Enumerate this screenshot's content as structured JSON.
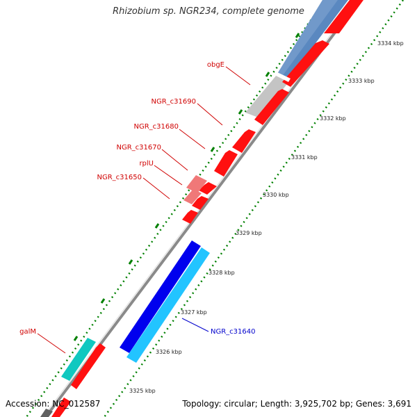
{
  "title": "Rhizobium sp. NGR234, complete genome",
  "footer": {
    "accession": "Accession: NC_012587",
    "topology": "Topology: circular; Length: 3,925,702 bp; Genes: 3,691"
  },
  "colors": {
    "forward_gene": "#ff0000",
    "forward_gene_light": "#f08080",
    "highlight_blue": "#0000ee",
    "highlight_cyan": "#00c0ff",
    "teal": "#20c8c8",
    "steel": "#5a88c0",
    "gray_feature": "#c8c8c8",
    "backbone": "#808080",
    "tick_green": "#008000",
    "label_red": "#d00000",
    "label_blue": "#0000cc"
  },
  "gene_labels": [
    {
      "name": "obgE"
    },
    {
      "name": "NGR_c31690"
    },
    {
      "name": "NGR_c31680"
    },
    {
      "name": "NGR_c31670"
    },
    {
      "name": "rplU"
    },
    {
      "name": "NGR_c31650"
    },
    {
      "name": "galM"
    },
    {
      "name": "NGR_c31640"
    }
  ],
  "tick_labels": [
    "3334 kbp",
    "3333 kbp",
    "3332 kbp",
    "3331 kbp",
    "3330 kbp",
    "3329 kbp",
    "3328 kbp",
    "3327 kbp",
    "3326 kbp",
    "3325 kbp"
  ]
}
